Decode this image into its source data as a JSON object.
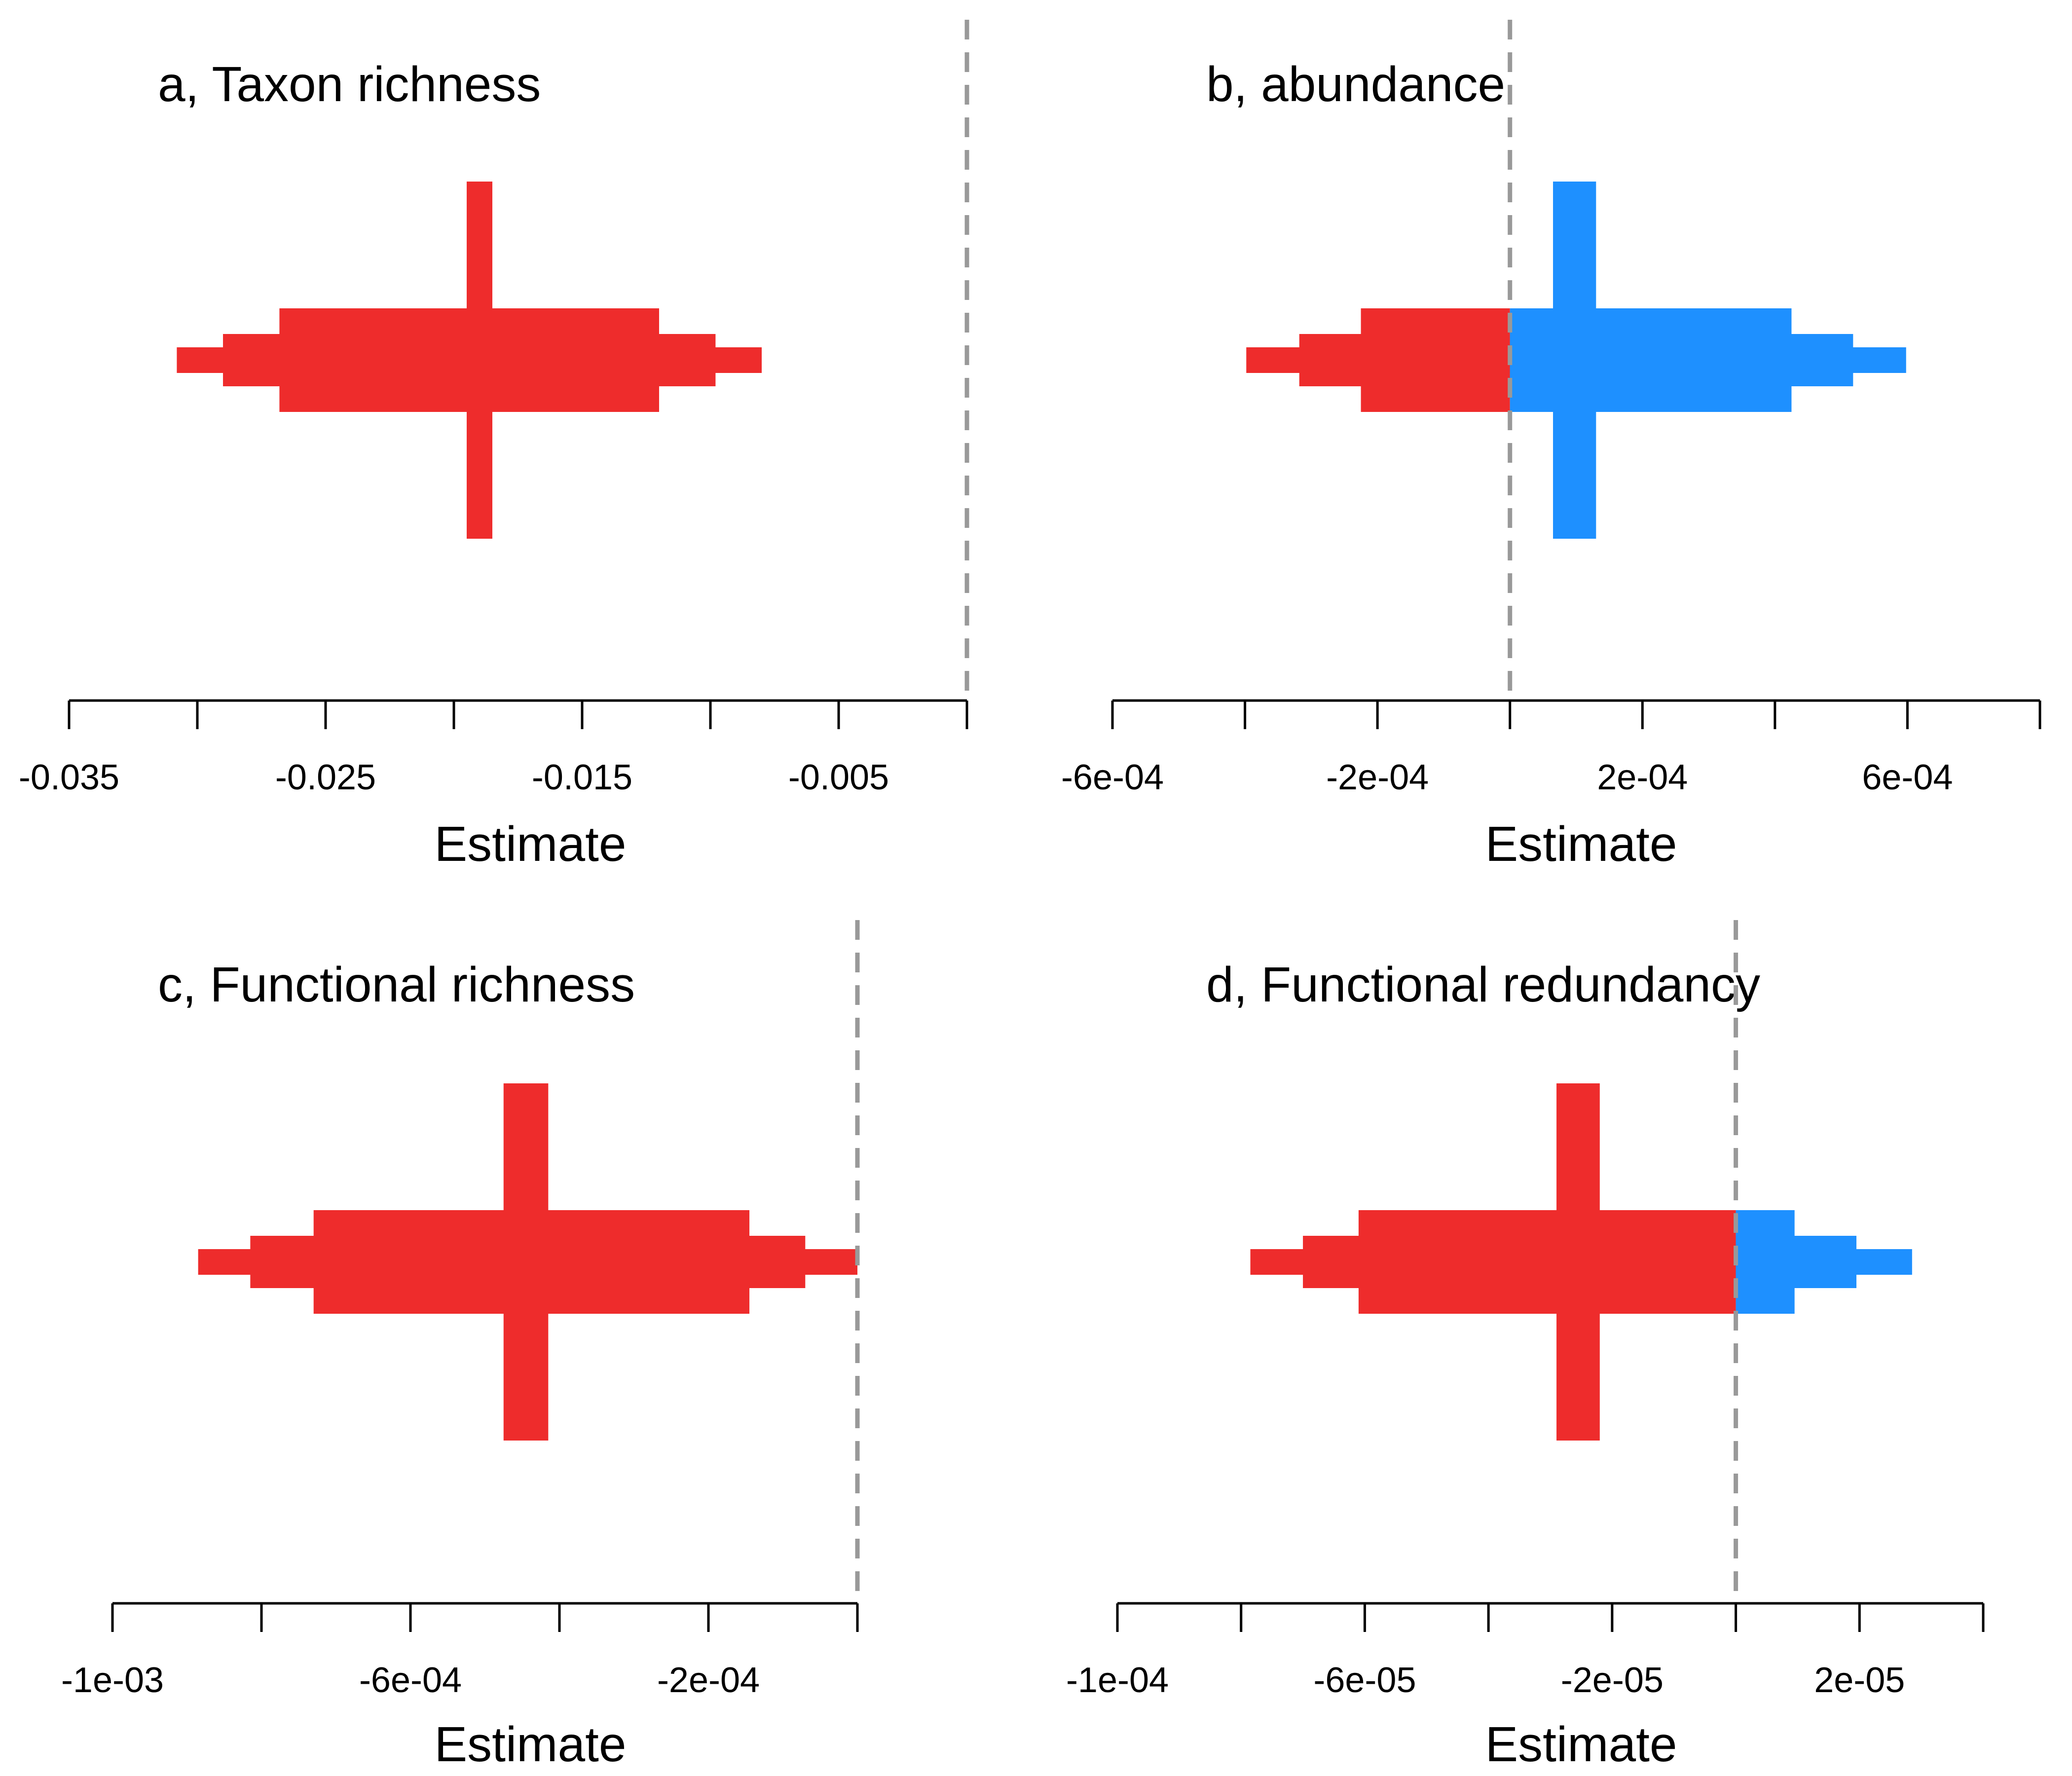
{
  "colors": {
    "negative": "#EE2C2C",
    "positive": "#1E90FF",
    "ref_line": "#999999",
    "axis": "#000000"
  },
  "chart_data": [
    {
      "type": "interval",
      "title": "a, Taxon richness",
      "xlabel": "Estimate",
      "xlim": [
        -0.035,
        0.0
      ],
      "xticks": [
        -0.035,
        -0.03,
        -0.025,
        -0.02,
        -0.015,
        -0.01,
        -0.005,
        0.0
      ],
      "xtick_labels": [
        "-0.035",
        "-0.025",
        "-0.015",
        "-0.005"
      ],
      "xtick_label_values": [
        -0.035,
        -0.025,
        -0.015,
        -0.005
      ],
      "ref_line": 0.0,
      "estimate": [
        -0.0195,
        -0.0185
      ],
      "intervals": [
        [
          -0.0308,
          -0.008
        ],
        [
          -0.029,
          -0.0098
        ],
        [
          -0.0268,
          -0.012
        ]
      ]
    },
    {
      "type": "interval",
      "title": "b, abundance",
      "xlabel": "Estimate",
      "xlim": [
        -0.0006,
        0.0008
      ],
      "xticks": [
        -0.0006,
        -0.0004,
        -0.0002,
        0.0,
        0.0002,
        0.0004,
        0.0006,
        0.0008
      ],
      "xtick_labels": [
        "-6e-04",
        "-2e-04",
        "2e-04",
        "6e-04"
      ],
      "xtick_label_values": [
        -0.0006,
        -0.0002,
        0.0002,
        0.0006
      ],
      "ref_line": 0.0,
      "estimate": [
        6.5e-05,
        0.00013
      ],
      "intervals": [
        [
          -0.000398,
          0.000598
        ],
        [
          -0.000318,
          0.000518
        ],
        [
          -0.000225,
          0.000425
        ]
      ]
    },
    {
      "type": "interval",
      "title": "c, Functional richness",
      "xlabel": "Estimate",
      "xlim": [
        -0.001,
        0.0
      ],
      "xticks": [
        -0.001,
        -0.0008,
        -0.0006,
        -0.0004,
        -0.0002,
        0.0
      ],
      "xtick_labels": [
        "-1e-03",
        "-6e-04",
        "-2e-04"
      ],
      "xtick_label_values": [
        -0.001,
        -0.0006,
        -0.0002
      ],
      "ref_line": 0.0,
      "estimate": [
        -0.000475,
        -0.000415
      ],
      "intervals": [
        [
          -0.000885,
          0.0
        ],
        [
          -0.000815,
          -7e-05
        ],
        [
          -0.00073,
          -0.000145
        ]
      ]
    },
    {
      "type": "interval",
      "title": "d, Functional redundancy",
      "xlabel": "Estimate",
      "xlim": [
        -0.0001,
        4e-05
      ],
      "xticks": [
        -0.0001,
        -8e-05,
        -6e-05,
        -4e-05,
        -2e-05,
        0.0,
        2e-05,
        4e-05
      ],
      "xtick_labels": [
        "-1e-04",
        "-6e-05",
        "-2e-05",
        "2e-05"
      ],
      "xtick_label_values": [
        -0.0001,
        -6e-05,
        -2e-05,
        2e-05
      ],
      "ref_line": 0.0,
      "estimate": [
        -2.9e-05,
        -2.2e-05
      ],
      "intervals": [
        [
          -7.85e-05,
          2.85e-05
        ],
        [
          -7e-05,
          1.95e-05
        ],
        [
          -6.1e-05,
          9.5e-06
        ]
      ]
    }
  ]
}
